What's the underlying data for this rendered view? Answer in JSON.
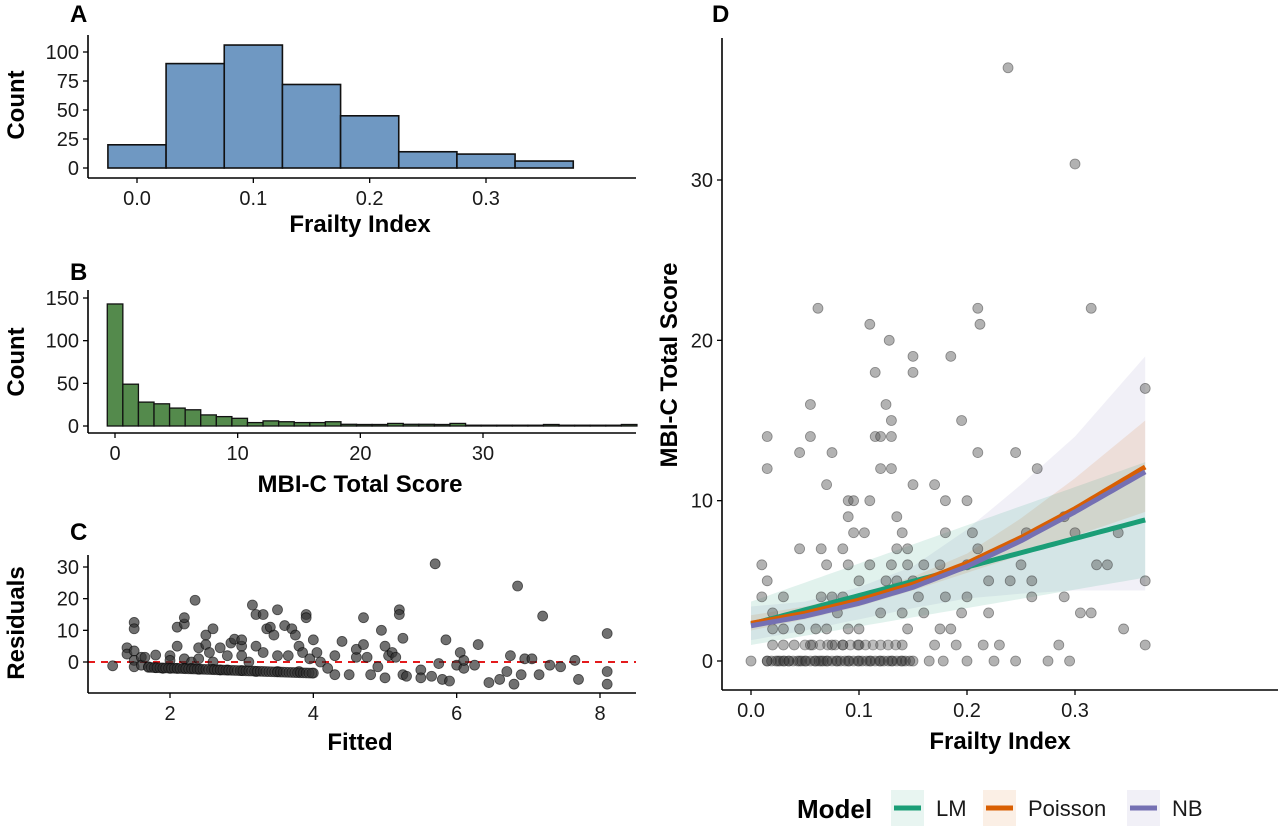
{
  "chart_data": [
    {
      "id": "A",
      "type": "bar",
      "title": "A",
      "xlabel": "Frailty Index",
      "ylabel": "Count",
      "xlim": [
        -0.04,
        0.38
      ],
      "ylim": [
        0,
        110
      ],
      "xticks": [
        0.0,
        0.1,
        0.2,
        0.3
      ],
      "xtick_labels": [
        "0.0",
        "0.1",
        "0.2",
        "0.3"
      ],
      "yticks": [
        0,
        25,
        50,
        75,
        100
      ],
      "ytick_labels": [
        "0",
        "25",
        "50",
        "75",
        "100"
      ],
      "bin_width": 0.05,
      "bin_centers": [
        0.0,
        0.05,
        0.1,
        0.15,
        0.2,
        0.25,
        0.3,
        0.35
      ],
      "values": [
        20,
        90,
        106,
        72,
        45,
        14,
        12,
        6
      ],
      "fill": "#6f98c2",
      "grid": false
    },
    {
      "id": "B",
      "type": "bar",
      "title": "B",
      "xlabel": "MBI-C Total Score",
      "ylabel": "Count",
      "xlim": [
        -2,
        40
      ],
      "ylim": [
        0,
        150
      ],
      "xticks": [
        0,
        10,
        20,
        30
      ],
      "xtick_labels": [
        "0",
        "10",
        "20",
        "30"
      ],
      "yticks": [
        0,
        50,
        100,
        150
      ],
      "ytick_labels": [
        "0",
        "50",
        "100",
        "150"
      ],
      "bin_width": 1.27,
      "bin_start": -0.63,
      "values": [
        143,
        49,
        28,
        26,
        21,
        19,
        13,
        11,
        9,
        4,
        6,
        5,
        4,
        4,
        5,
        2,
        1,
        1,
        3,
        2,
        2,
        1,
        3,
        0,
        0,
        0,
        0,
        0,
        1,
        0,
        0,
        0,
        0,
        1
      ],
      "fill": "#548a4c",
      "grid": false
    },
    {
      "id": "C",
      "type": "scatter",
      "title": "C",
      "xlabel": "Fitted",
      "ylabel": "Residuals",
      "xlim": [
        1.0,
        8.5
      ],
      "ylim": [
        -9,
        34
      ],
      "xticks": [
        2,
        4,
        6,
        8
      ],
      "xtick_labels": [
        "2",
        "4",
        "6",
        "8"
      ],
      "yticks": [
        0,
        10,
        20,
        30
      ],
      "ytick_labels": [
        "0",
        "10",
        "20",
        "30"
      ],
      "reference_line": {
        "y": 0,
        "style": "dashed",
        "color": "#e41a1c"
      },
      "point_color": "#333333",
      "points": [
        [
          1.2,
          -1.2
        ],
        [
          1.4,
          4.5
        ],
        [
          1.4,
          2.5
        ],
        [
          1.5,
          12.5
        ],
        [
          1.5,
          10.5
        ],
        [
          1.5,
          3.5
        ],
        [
          1.5,
          0.5
        ],
        [
          1.5,
          -1.5
        ],
        [
          1.6,
          1.5
        ],
        [
          1.6,
          -1
        ],
        [
          1.65,
          1.5
        ],
        [
          1.7,
          -1.5
        ],
        [
          1.8,
          2.2
        ],
        [
          1.8,
          -1.8
        ],
        [
          1.9,
          -2
        ],
        [
          2.0,
          2
        ],
        [
          2.0,
          0.5
        ],
        [
          2.0,
          -2
        ],
        [
          2.1,
          11
        ],
        [
          2.1,
          5
        ],
        [
          2.1,
          -2
        ],
        [
          2.2,
          12
        ],
        [
          2.2,
          14
        ],
        [
          2.2,
          1
        ],
        [
          2.2,
          -2
        ],
        [
          2.3,
          0
        ],
        [
          2.3,
          -2
        ],
        [
          2.35,
          19.5
        ],
        [
          2.4,
          4.5
        ],
        [
          2.4,
          1
        ],
        [
          2.4,
          -2.3
        ],
        [
          2.5,
          5.5
        ],
        [
          2.5,
          8.5
        ],
        [
          2.55,
          3
        ],
        [
          2.6,
          10.5
        ],
        [
          2.6,
          0
        ],
        [
          2.6,
          -2.3
        ],
        [
          2.7,
          4.5
        ],
        [
          2.7,
          -2.5
        ],
        [
          2.8,
          2
        ],
        [
          2.8,
          -2.5
        ],
        [
          2.85,
          6
        ],
        [
          2.9,
          7.2
        ],
        [
          3.0,
          5
        ],
        [
          3.0,
          7
        ],
        [
          3.0,
          2
        ],
        [
          3.0,
          -2.7
        ],
        [
          3.1,
          0
        ],
        [
          3.15,
          18
        ],
        [
          3.2,
          15
        ],
        [
          3.2,
          5
        ],
        [
          3.2,
          -3
        ],
        [
          3.3,
          15
        ],
        [
          3.3,
          3
        ],
        [
          3.35,
          10.5
        ],
        [
          3.4,
          11
        ],
        [
          3.45,
          8.5
        ],
        [
          3.5,
          16.5
        ],
        [
          3.5,
          2
        ],
        [
          3.5,
          -3
        ],
        [
          3.6,
          11.5
        ],
        [
          3.65,
          2
        ],
        [
          3.7,
          10.5
        ],
        [
          3.75,
          8.5
        ],
        [
          3.8,
          5
        ],
        [
          3.8,
          -3
        ],
        [
          3.85,
          3
        ],
        [
          3.9,
          15
        ],
        [
          3.9,
          14
        ],
        [
          3.95,
          1
        ],
        [
          4.0,
          7
        ],
        [
          4.0,
          -3.5
        ],
        [
          4.05,
          3
        ],
        [
          4.1,
          0
        ],
        [
          4.2,
          -2
        ],
        [
          4.3,
          2
        ],
        [
          4.3,
          -4
        ],
        [
          4.4,
          6.5
        ],
        [
          4.5,
          -4
        ],
        [
          4.6,
          1.5
        ],
        [
          4.6,
          4
        ],
        [
          4.7,
          5.5
        ],
        [
          4.7,
          14
        ],
        [
          4.75,
          1.5
        ],
        [
          4.8,
          -4
        ],
        [
          4.9,
          -1.5
        ],
        [
          4.95,
          10
        ],
        [
          5.0,
          5
        ],
        [
          5.0,
          -5
        ],
        [
          5.05,
          2
        ],
        [
          5.1,
          3
        ],
        [
          5.15,
          1.5
        ],
        [
          5.2,
          16.5
        ],
        [
          5.2,
          15
        ],
        [
          5.25,
          7.5
        ],
        [
          5.25,
          -4
        ],
        [
          5.3,
          -4.5
        ],
        [
          5.5,
          -2.5
        ],
        [
          5.5,
          -5
        ],
        [
          5.65,
          -4.5
        ],
        [
          5.7,
          31
        ],
        [
          5.75,
          -0.5
        ],
        [
          5.8,
          -5.5
        ],
        [
          5.85,
          7
        ],
        [
          5.9,
          -6
        ],
        [
          6.0,
          -1
        ],
        [
          6.05,
          3
        ],
        [
          6.1,
          -2
        ],
        [
          6.1,
          0.5
        ],
        [
          6.25,
          -1
        ],
        [
          6.3,
          5.5
        ],
        [
          6.45,
          -6.5
        ],
        [
          6.6,
          -5.5
        ],
        [
          6.7,
          -3
        ],
        [
          6.75,
          2
        ],
        [
          6.8,
          -7
        ],
        [
          6.85,
          24
        ],
        [
          6.9,
          -4
        ],
        [
          6.95,
          1
        ],
        [
          7.05,
          1
        ],
        [
          7.15,
          -4
        ],
        [
          7.2,
          14.5
        ],
        [
          7.3,
          -1
        ],
        [
          7.45,
          -1.5
        ],
        [
          7.65,
          0.5
        ],
        [
          7.7,
          -5.5
        ],
        [
          8.1,
          9
        ],
        [
          8.1,
          -3
        ],
        [
          8.1,
          -7
        ]
      ],
      "grid": false
    },
    {
      "id": "D",
      "type": "scatter",
      "title": "D",
      "xlabel": "Frailty Index",
      "ylabel": "MBI-C Total Score",
      "xlim": [
        -0.018,
        0.385
      ],
      "ylim": [
        -1.8,
        38.5
      ],
      "xticks": [
        0.0,
        0.1,
        0.2,
        0.3
      ],
      "xtick_labels": [
        "0.0",
        "0.1",
        "0.2",
        "0.3"
      ],
      "yticks": [
        0,
        10,
        20,
        30
      ],
      "ytick_labels": [
        "0",
        "10",
        "20",
        "30"
      ],
      "point_color": "#555555",
      "points": [
        [
          0.0,
          0
        ],
        [
          0.01,
          6
        ],
        [
          0.01,
          4
        ],
        [
          0.015,
          14
        ],
        [
          0.015,
          12
        ],
        [
          0.015,
          5
        ],
        [
          0.015,
          0
        ],
        [
          0.02,
          3
        ],
        [
          0.02,
          2
        ],
        [
          0.02,
          1
        ],
        [
          0.025,
          0
        ],
        [
          0.03,
          0
        ],
        [
          0.03,
          2
        ],
        [
          0.03,
          1
        ],
        [
          0.03,
          4
        ],
        [
          0.035,
          0
        ],
        [
          0.04,
          1
        ],
        [
          0.045,
          13
        ],
        [
          0.045,
          7
        ],
        [
          0.045,
          2
        ],
        [
          0.045,
          0
        ],
        [
          0.05,
          0
        ],
        [
          0.055,
          16
        ],
        [
          0.055,
          14
        ],
        [
          0.055,
          1
        ],
        [
          0.06,
          2
        ],
        [
          0.06,
          0
        ],
        [
          0.062,
          22
        ],
        [
          0.065,
          7
        ],
        [
          0.065,
          4
        ],
        [
          0.065,
          0
        ],
        [
          0.07,
          11
        ],
        [
          0.07,
          6
        ],
        [
          0.07,
          2
        ],
        [
          0.07,
          0
        ],
        [
          0.075,
          13
        ],
        [
          0.075,
          4
        ],
        [
          0.075,
          1
        ],
        [
          0.08,
          3
        ],
        [
          0.08,
          0
        ],
        [
          0.085,
          7
        ],
        [
          0.085,
          4
        ],
        [
          0.085,
          1
        ],
        [
          0.09,
          10
        ],
        [
          0.09,
          9
        ],
        [
          0.09,
          6
        ],
        [
          0.09,
          2
        ],
        [
          0.09,
          0
        ],
        [
          0.095,
          10
        ],
        [
          0.095,
          8
        ],
        [
          0.1,
          5
        ],
        [
          0.1,
          2
        ],
        [
          0.1,
          1
        ],
        [
          0.1,
          0
        ],
        [
          0.105,
          8
        ],
        [
          0.11,
          10
        ],
        [
          0.11,
          6
        ],
        [
          0.11,
          21
        ],
        [
          0.11,
          0
        ],
        [
          0.115,
          18
        ],
        [
          0.115,
          14
        ],
        [
          0.12,
          12
        ],
        [
          0.12,
          14
        ],
        [
          0.12,
          3
        ],
        [
          0.12,
          0
        ],
        [
          0.125,
          16
        ],
        [
          0.125,
          5
        ],
        [
          0.128,
          20
        ],
        [
          0.13,
          15
        ],
        [
          0.13,
          14
        ],
        [
          0.13,
          12
        ],
        [
          0.13,
          6
        ],
        [
          0.13,
          0
        ],
        [
          0.135,
          9
        ],
        [
          0.135,
          5
        ],
        [
          0.135,
          7
        ],
        [
          0.14,
          8
        ],
        [
          0.14,
          3
        ],
        [
          0.14,
          1
        ],
        [
          0.14,
          0
        ],
        [
          0.145,
          6
        ],
        [
          0.145,
          7
        ],
        [
          0.145,
          2
        ],
        [
          0.15,
          19
        ],
        [
          0.15,
          18
        ],
        [
          0.15,
          11
        ],
        [
          0.15,
          5
        ],
        [
          0.15,
          0
        ],
        [
          0.155,
          4
        ],
        [
          0.16,
          3
        ],
        [
          0.16,
          6
        ],
        [
          0.165,
          0
        ],
        [
          0.17,
          11
        ],
        [
          0.17,
          1
        ],
        [
          0.175,
          2
        ],
        [
          0.175,
          6
        ],
        [
          0.178,
          0
        ],
        [
          0.18,
          10
        ],
        [
          0.18,
          8
        ],
        [
          0.18,
          4
        ],
        [
          0.185,
          19
        ],
        [
          0.185,
          2
        ],
        [
          0.19,
          1
        ],
        [
          0.195,
          15
        ],
        [
          0.195,
          3
        ],
        [
          0.2,
          10
        ],
        [
          0.2,
          6
        ],
        [
          0.2,
          4
        ],
        [
          0.2,
          0
        ],
        [
          0.205,
          8
        ],
        [
          0.21,
          22
        ],
        [
          0.21,
          7
        ],
        [
          0.21,
          13
        ],
        [
          0.212,
          21
        ],
        [
          0.215,
          1
        ],
        [
          0.22,
          5
        ],
        [
          0.22,
          3
        ],
        [
          0.225,
          0
        ],
        [
          0.23,
          1
        ],
        [
          0.238,
          37
        ],
        [
          0.24,
          5
        ],
        [
          0.245,
          13
        ],
        [
          0.245,
          0
        ],
        [
          0.25,
          6
        ],
        [
          0.255,
          8
        ],
        [
          0.26,
          4
        ],
        [
          0.26,
          5
        ],
        [
          0.265,
          12
        ],
        [
          0.275,
          0
        ],
        [
          0.285,
          1
        ],
        [
          0.29,
          4
        ],
        [
          0.29,
          9
        ],
        [
          0.295,
          0
        ],
        [
          0.3,
          31
        ],
        [
          0.3,
          8
        ],
        [
          0.305,
          3
        ],
        [
          0.315,
          22
        ],
        [
          0.315,
          3
        ],
        [
          0.32,
          6
        ],
        [
          0.33,
          6
        ],
        [
          0.34,
          8
        ],
        [
          0.345,
          2
        ],
        [
          0.365,
          17
        ],
        [
          0.365,
          5
        ],
        [
          0.365,
          1
        ]
      ],
      "series": [
        {
          "name": "LM",
          "color": "#1b9e77",
          "x": [
            0.0,
            0.365
          ],
          "y": [
            2.3,
            8.8
          ],
          "ci_lower": [
            1.0,
            5.2
          ],
          "ci_upper": [
            3.7,
            12.4
          ]
        },
        {
          "name": "Poisson",
          "color": "#d95f02",
          "x": [
            0.0,
            0.05,
            0.1,
            0.15,
            0.2,
            0.25,
            0.3,
            0.365
          ],
          "y": [
            2.35,
            2.98,
            3.8,
            4.8,
            6.1,
            7.7,
            9.5,
            12.1
          ],
          "ci_lower": [
            1.9,
            2.6,
            3.4,
            4.4,
            5.5,
            6.6,
            7.8,
            9.3
          ],
          "ci_upper": [
            2.85,
            3.4,
            4.2,
            5.25,
            6.7,
            8.9,
            11.4,
            15.0
          ]
        },
        {
          "name": "NB",
          "color": "#7570b3",
          "x": [
            0.0,
            0.05,
            0.1,
            0.15,
            0.2,
            0.25,
            0.3,
            0.365
          ],
          "y": [
            2.2,
            2.8,
            3.6,
            4.6,
            5.9,
            7.5,
            9.3,
            11.8
          ],
          "ci_lower": [
            1.3,
            1.9,
            2.6,
            3.3,
            3.9,
            4.2,
            4.4,
            4.4
          ],
          "ci_upper": [
            3.4,
            3.7,
            4.6,
            5.9,
            8.2,
            11.0,
            14.0,
            19.0
          ]
        }
      ],
      "legend": {
        "title": "Model",
        "position": "bottom",
        "items": [
          "LM",
          "Poisson",
          "NB"
        ]
      },
      "grid": false
    }
  ],
  "labels": {
    "panel_a": "A",
    "panel_b": "B",
    "panel_c": "C",
    "panel_d": "D",
    "a_xlabel": "Frailty Index",
    "a_ylabel": "Count",
    "b_xlabel": "MBI-C Total Score",
    "b_ylabel": "Count",
    "c_xlabel": "Fitted",
    "c_ylabel": "Residuals",
    "d_xlabel": "Frailty Index",
    "d_ylabel": "MBI-C Total Score",
    "legend_title": "Model",
    "legend_lm": "LM",
    "legend_poisson": "Poisson",
    "legend_nb": "NB"
  }
}
